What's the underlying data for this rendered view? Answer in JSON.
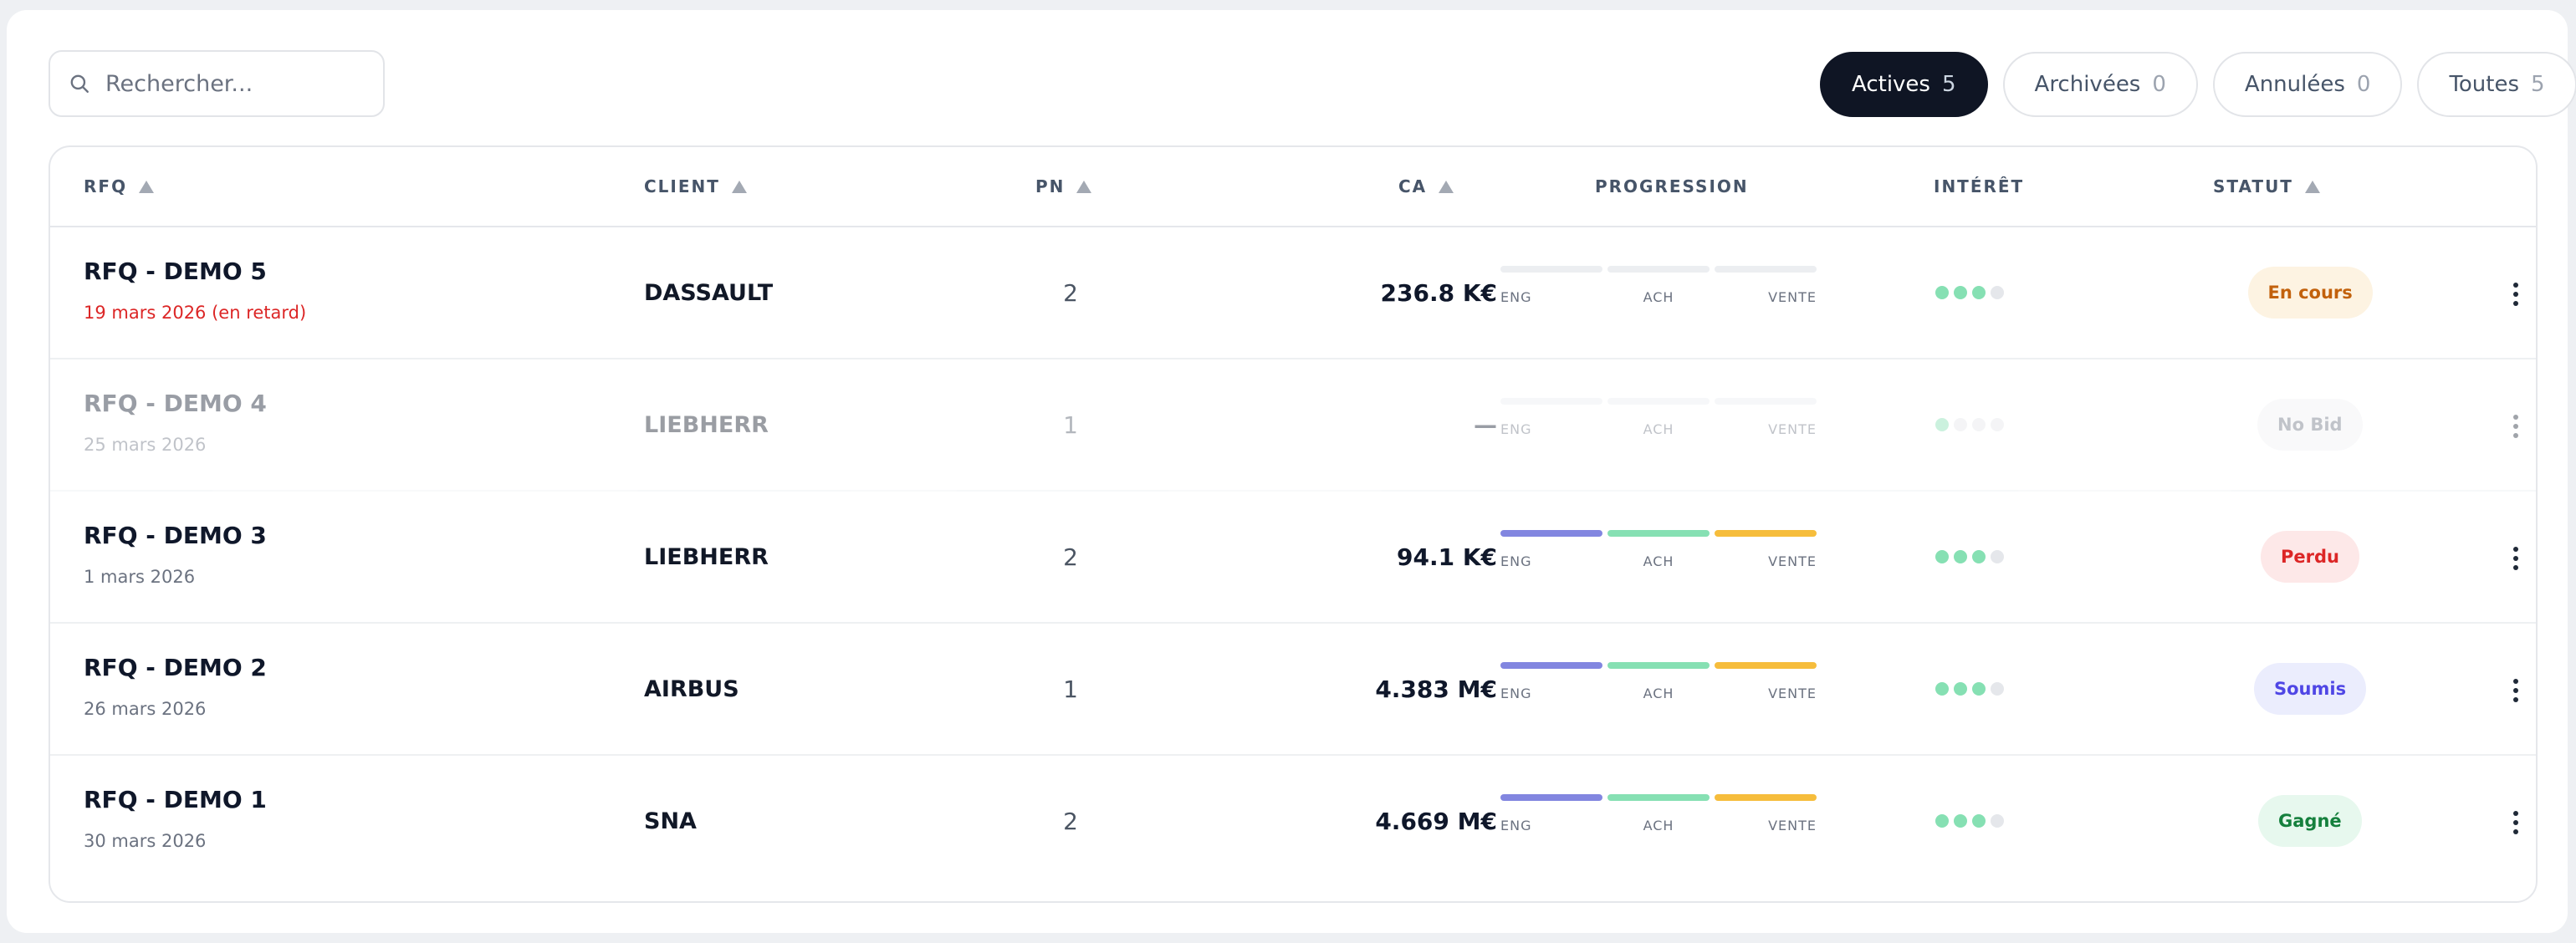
{
  "search": {
    "placeholder": "Rechercher..."
  },
  "tabs": [
    {
      "label": "Actives",
      "count": "5",
      "active": true
    },
    {
      "label": "Archivées",
      "count": "0",
      "active": false
    },
    {
      "label": "Annulées",
      "count": "0",
      "active": false
    },
    {
      "label": "Toutes",
      "count": "5",
      "active": false
    }
  ],
  "columns": {
    "rfq": "RFQ",
    "client": "CLIENT",
    "pn": "PN",
    "ca": "CA",
    "progression": "PROGRESSION",
    "interet": "INTÉRÊT",
    "statut": "STATUT"
  },
  "progression_labels": {
    "eng": "ENG",
    "ach": "ACH",
    "vente": "VENTE"
  },
  "rows": [
    {
      "title": "RFQ - DEMO 5",
      "date": "19 mars 2026 (en retard)",
      "late": true,
      "dim": false,
      "client": "DASSAULT",
      "pn": "2",
      "ca": "236.8 K€",
      "progress": {
        "eng": false,
        "ach": false,
        "vente": false
      },
      "interest": 3,
      "interest_max": 4,
      "status": "En cours",
      "status_bg": "#fdf3e2",
      "status_color": "#c2610c"
    },
    {
      "title": "RFQ - DEMO 4",
      "date": "25 mars 2026",
      "late": false,
      "dim": true,
      "client": "LIEBHERR",
      "pn": "1",
      "ca": "—",
      "progress": {
        "eng": false,
        "ach": false,
        "vente": false
      },
      "interest": 1,
      "interest_max": 4,
      "status": "No Bid",
      "status_bg": "#f1f2f4",
      "status_color": "#6b7280"
    },
    {
      "title": "RFQ - DEMO 3",
      "date": "1 mars 2026",
      "late": false,
      "dim": false,
      "client": "LIEBHERR",
      "pn": "2",
      "ca": "94.1 K€",
      "progress": {
        "eng": true,
        "ach": true,
        "vente": true
      },
      "interest": 3,
      "interest_max": 4,
      "status": "Perdu",
      "status_bg": "#fde8e8",
      "status_color": "#dc2626"
    },
    {
      "title": "RFQ - DEMO 2",
      "date": "26 mars 2026",
      "late": false,
      "dim": false,
      "client": "AIRBUS",
      "pn": "1",
      "ca": "4.383 M€",
      "progress": {
        "eng": true,
        "ach": true,
        "vente": true
      },
      "interest": 3,
      "interest_max": 4,
      "status": "Soumis",
      "status_bg": "#ebedfd",
      "status_color": "#4f46e5"
    },
    {
      "title": "RFQ - DEMO 1",
      "date": "30 mars 2026",
      "late": false,
      "dim": false,
      "client": "SNA",
      "pn": "2",
      "ca": "4.669 M€",
      "progress": {
        "eng": true,
        "ach": true,
        "vente": true
      },
      "interest": 3,
      "interest_max": 4,
      "status": "Gagné",
      "status_bg": "#e7f8ee",
      "status_color": "#15803d"
    }
  ],
  "icons": {
    "search": "search-icon",
    "row_menu": "more-vertical-icon",
    "sort": "sort-asc-icon"
  }
}
